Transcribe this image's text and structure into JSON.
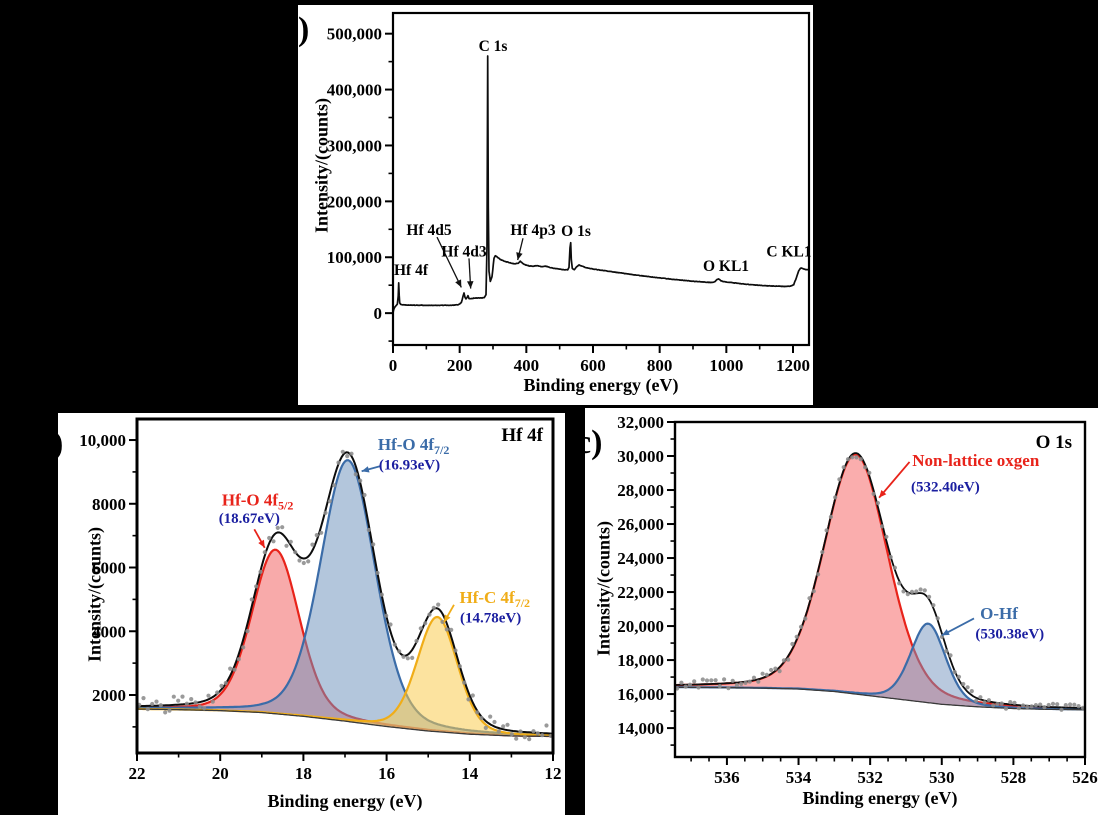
{
  "figure": {
    "background": "#000000",
    "panels": [
      {
        "letter": ")"
      },
      {
        "letter": ")"
      },
      {
        "letter": "c)"
      }
    ]
  },
  "colors": {
    "red": "#e8231a",
    "blue": "#3b6ca8",
    "yellow": "#f0ad18",
    "navy": "#1b1fa0",
    "scatter_gray": "#8c8c8c",
    "envelope": "#0d0d0d",
    "baseline": "#3a3a3a"
  },
  "chart_data": [
    {
      "id": "survey-spectrum",
      "type": "line",
      "xlabel": "Binding energy (eV)",
      "ylabel": "Intensity/(counts)",
      "xlim": [
        0,
        1248
      ],
      "ylim": [
        -57000,
        537000
      ],
      "xticks": [
        0,
        200,
        400,
        600,
        800,
        1000,
        1200
      ],
      "xtick_labels": [
        "0",
        "200",
        "400",
        "600",
        "800",
        "1000",
        "1200"
      ],
      "yticks": [
        0,
        100000,
        200000,
        300000,
        400000,
        500000
      ],
      "ytick_labels": [
        "0",
        "100,000",
        "200,000",
        "300,000",
        "400,000",
        "500,000"
      ],
      "grid": false,
      "line_color": "#0d0d0d",
      "series": [
        {
          "name": "survey",
          "points": [
            [
              0,
              600
            ],
            [
              2,
              6000
            ],
            [
              5,
              10500
            ],
            [
              9,
              13000
            ],
            [
              13,
              16000
            ],
            [
              15.5,
              30000
            ],
            [
              17,
              54000
            ],
            [
              18.5,
              32000
            ],
            [
              20,
              18000
            ],
            [
              23,
              15500
            ],
            [
              30,
              15000
            ],
            [
              45,
              14500
            ],
            [
              70,
              14200
            ],
            [
              110,
              14000
            ],
            [
              150,
              14000
            ],
            [
              185,
              14300
            ],
            [
              198,
              15500
            ],
            [
              205,
              19000
            ],
            [
              210,
              30000
            ],
            [
              213,
              36000
            ],
            [
              216,
              28000
            ],
            [
              219,
              25500
            ],
            [
              222,
              28000
            ],
            [
              225,
              31000
            ],
            [
              228,
              26000
            ],
            [
              232,
              26000
            ],
            [
              238,
              26500
            ],
            [
              248,
              27000
            ],
            [
              262,
              27200
            ],
            [
              274,
              27800
            ],
            [
              279,
              33000
            ],
            [
              282,
              120000
            ],
            [
              284,
              460000
            ],
            [
              286,
              190000
            ],
            [
              288,
              75000
            ],
            [
              292,
              57000
            ],
            [
              297,
              65000
            ],
            [
              303,
              98000
            ],
            [
              307,
              103000
            ],
            [
              313,
              100500
            ],
            [
              322,
              96000
            ],
            [
              334,
              93000
            ],
            [
              348,
              90500
            ],
            [
              362,
              88500
            ],
            [
              376,
              89000
            ],
            [
              382,
              93000
            ],
            [
              388,
              89500
            ],
            [
              396,
              86500
            ],
            [
              408,
              84500
            ],
            [
              420,
              84000
            ],
            [
              432,
              85000
            ],
            [
              446,
              83000
            ],
            [
              458,
              84000
            ],
            [
              472,
              81500
            ],
            [
              486,
              80000
            ],
            [
              500,
              79000
            ],
            [
              514,
              77500
            ],
            [
              524,
              77500
            ],
            [
              528,
              82000
            ],
            [
              531,
              117000
            ],
            [
              533,
              126000
            ],
            [
              535,
              96000
            ],
            [
              538,
              80000
            ],
            [
              544,
              77500
            ],
            [
              551,
              83000
            ],
            [
              558,
              86000
            ],
            [
              566,
              84500
            ],
            [
              576,
              82000
            ],
            [
              590,
              80000
            ],
            [
              606,
              78500
            ],
            [
              622,
              77000
            ],
            [
              640,
              75500
            ],
            [
              658,
              74000
            ],
            [
              676,
              72500
            ],
            [
              694,
              71000
            ],
            [
              712,
              69500
            ],
            [
              730,
              68000
            ],
            [
              748,
              66800
            ],
            [
              766,
              65500
            ],
            [
              784,
              64200
            ],
            [
              802,
              63000
            ],
            [
              820,
              61800
            ],
            [
              838,
              60700
            ],
            [
              856,
              59600
            ],
            [
              874,
              58500
            ],
            [
              892,
              57500
            ],
            [
              910,
              56600
            ],
            [
              928,
              55800
            ],
            [
              944,
              55200
            ],
            [
              958,
              55000
            ],
            [
              966,
              56500
            ],
            [
              972,
              60500
            ],
            [
              978,
              61000
            ],
            [
              984,
              58000
            ],
            [
              992,
              56500
            ],
            [
              1004,
              55500
            ],
            [
              1020,
              54300
            ],
            [
              1036,
              53200
            ],
            [
              1052,
              52200
            ],
            [
              1068,
              51300
            ],
            [
              1084,
              50500
            ],
            [
              1100,
              49800
            ],
            [
              1116,
              49200
            ],
            [
              1132,
              48700
            ],
            [
              1148,
              48300
            ],
            [
              1164,
              48000
            ],
            [
              1178,
              47800
            ],
            [
              1192,
              48200
            ],
            [
              1202,
              51000
            ],
            [
              1210,
              63000
            ],
            [
              1217,
              76000
            ],
            [
              1224,
              81000
            ],
            [
              1231,
              79000
            ],
            [
              1239,
              78000
            ],
            [
              1246,
              78000
            ]
          ]
        }
      ],
      "peak_labels": [
        {
          "text": "Hf 4f",
          "x": 54,
          "y": 77000
        },
        {
          "text": "Hf 4d5",
          "x": 108,
          "y": 149000,
          "arrow": {
            "x1": 132,
            "y1": 136000,
            "x2": 205,
            "y2": 46000
          }
        },
        {
          "text": "Hf 4d3",
          "x": 213,
          "y": 110000,
          "arrow": {
            "x1": 228,
            "y1": 98000,
            "x2": 233,
            "y2": 44000
          }
        },
        {
          "text": "C 1s",
          "x": 300,
          "y": 478000
        },
        {
          "text": "Hf 4p3",
          "x": 420,
          "y": 149000,
          "arrow": {
            "x1": 390,
            "y1": 134000,
            "x2": 374,
            "y2": 95000
          }
        },
        {
          "text": "O 1s",
          "x": 549,
          "y": 147000
        },
        {
          "text": "O KL1",
          "x": 999,
          "y": 84000
        },
        {
          "text": "C KL1",
          "x": 1188,
          "y": 110000
        }
      ]
    },
    {
      "id": "hf4f-spectrum",
      "type": "fitted-peaks",
      "corner_label": "Hf 4f",
      "xlabel": "Binding energy (eV)",
      "ylabel": "Intensity/(counts)",
      "xlim": [
        22,
        12
      ],
      "ylim": [
        180,
        10660
      ],
      "xticks": [
        22,
        20,
        18,
        16,
        14,
        12
      ],
      "xtick_labels": [
        "22",
        "20",
        "18",
        "16",
        "14",
        "12"
      ],
      "yticks": [
        2000,
        4000,
        6000,
        8000,
        10000
      ],
      "ytick_labels": [
        "2000",
        "4000",
        "6000",
        "8000",
        "10,000"
      ],
      "baseline": [
        [
          22,
          1560
        ],
        [
          21,
          1540
        ],
        [
          20,
          1510
        ],
        [
          19,
          1450
        ],
        [
          18,
          1330
        ],
        [
          17,
          1180
        ],
        [
          16,
          1010
        ],
        [
          15,
          870
        ],
        [
          14,
          770
        ],
        [
          13,
          715
        ],
        [
          12,
          700
        ]
      ],
      "peaks": [
        {
          "name": "Hf-O 4f5/2",
          "center_ev": 18.67,
          "amplitude": 5150,
          "fwhm": 1.35,
          "stroke": "#e8231a",
          "fill": "rgba(242,85,85,0.50)"
        },
        {
          "name": "Hf-O 4f7/2",
          "center_ev": 16.93,
          "amplitude": 8200,
          "fwhm": 1.55,
          "stroke": "#3b6ca8",
          "fill": "rgba(110,145,188,0.52)"
        },
        {
          "name": "Hf-C 4f7/2",
          "center_ev": 14.78,
          "amplitude": 3600,
          "fwhm": 1.15,
          "stroke": "#f0ad18",
          "fill": "rgba(250,204,80,0.55)"
        }
      ],
      "annotations": [
        {
          "main": "Hf-O  4f",
          "sub": "5/2",
          "color": "#e8231a",
          "x": 19.1,
          "y": 8100,
          "value": "(18.67eV)",
          "value_x": 19.3,
          "value_y": 7550,
          "arrow": {
            "x1": 19.18,
            "y1": 7200,
            "x2": 18.93,
            "y2": 6620
          }
        },
        {
          "main": "Hf-O 4f",
          "sub": "7/2",
          "color": "#3b6ca8",
          "x": 15.35,
          "y": 9850,
          "value": "(16.93eV)",
          "value_x": 15.45,
          "value_y": 9230,
          "arrow": {
            "x1": 16.15,
            "y1": 9180,
            "x2": 16.6,
            "y2": 9020
          }
        },
        {
          "main": "Hf-C 4f",
          "sub": "7/2",
          "color": "#f0ad18",
          "x": 13.4,
          "y": 5050,
          "value": "(14.78eV)",
          "value_x": 13.5,
          "value_y": 4430,
          "arrow": {
            "x1": 14.38,
            "y1": 4830,
            "x2": 14.62,
            "y2": 4280
          }
        }
      ]
    },
    {
      "id": "o1s-spectrum",
      "type": "fitted-peaks",
      "corner_label": "O 1s",
      "xlabel": "Binding energy (eV)",
      "ylabel": "Intensity/(counts)",
      "xlim": [
        537.45,
        526
      ],
      "ylim": [
        12300,
        32000
      ],
      "xticks": [
        536,
        534,
        532,
        530,
        528,
        526
      ],
      "xtick_labels": [
        "536",
        "534",
        "532",
        "530",
        "528",
        "526"
      ],
      "yticks": [
        14000,
        16000,
        18000,
        20000,
        22000,
        24000,
        26000,
        28000,
        30000,
        32000
      ],
      "ytick_labels": [
        "14,000",
        "16,000",
        "18,000",
        "20,000",
        "22,000",
        "24,000",
        "26,000",
        "28,000",
        "30,000",
        "32,000"
      ],
      "baseline": [
        [
          537.45,
          16400
        ],
        [
          536,
          16380
        ],
        [
          535,
          16350
        ],
        [
          534,
          16300
        ],
        [
          533,
          16150
        ],
        [
          532,
          15900
        ],
        [
          531,
          15650
        ],
        [
          530,
          15400
        ],
        [
          529,
          15250
        ],
        [
          528,
          15150
        ],
        [
          527,
          15100
        ],
        [
          526,
          15080
        ]
      ],
      "peaks": [
        {
          "name": "Non-lattice oxgen",
          "center_ev": 532.4,
          "amplitude": 14100,
          "fwhm": 2.1,
          "stroke": "#e8231a",
          "fill": "rgba(246,105,105,0.55)"
        },
        {
          "name": "O-Hf",
          "center_ev": 530.38,
          "amplitude": 4650,
          "fwhm": 1.15,
          "stroke": "#3b6ca8",
          "fill": "rgba(115,148,190,0.50)"
        }
      ],
      "annotations": [
        {
          "main": "Non-lattice oxgen",
          "color": "#e8231a",
          "x": 529.05,
          "y": 29700,
          "value": "(532.40eV)",
          "value_x": 529.9,
          "value_y": 28200,
          "arrow": {
            "x1": 530.9,
            "y1": 29650,
            "x2": 531.75,
            "y2": 27550
          }
        },
        {
          "main": "O-Hf",
          "color": "#3b6ca8",
          "x": 528.4,
          "y": 20700,
          "value": "(530.38eV)",
          "value_x": 528.1,
          "value_y": 19550,
          "arrow": {
            "x1": 529.1,
            "y1": 20450,
            "x2": 530.0,
            "y2": 19450
          }
        }
      ]
    }
  ]
}
